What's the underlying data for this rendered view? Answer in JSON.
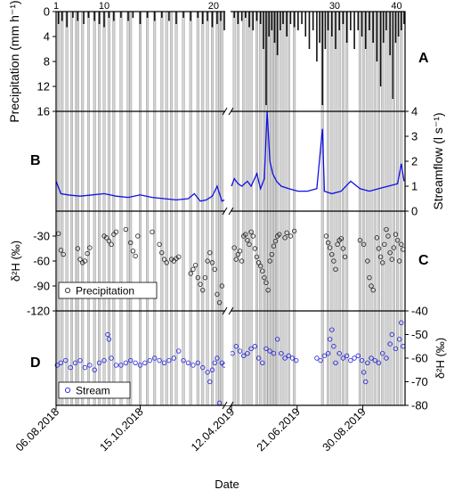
{
  "chart_data": [
    {
      "panel": "A",
      "type": "bar",
      "ylabel": "Precipitation (mm h⁻¹)",
      "ylim": [
        16,
        0
      ],
      "y_axis_inverted": true,
      "yticks": [
        0,
        4,
        8,
        12,
        16
      ],
      "event_numbers": [
        "1",
        "10",
        "20",
        "30",
        "40"
      ],
      "event_numbers_positions_days": [
        0,
        40,
        131,
        359,
        425
      ],
      "values_left": [
        [
          2,
          2
        ],
        [
          5,
          1.5
        ],
        [
          9,
          2.5
        ],
        [
          14,
          1
        ],
        [
          18,
          1.5
        ],
        [
          23,
          2
        ],
        [
          27,
          1
        ],
        [
          32,
          1.5
        ],
        [
          36,
          2
        ],
        [
          40,
          2.5
        ],
        [
          44,
          1
        ],
        [
          48,
          1.5
        ],
        [
          54,
          1
        ],
        [
          60,
          1.5
        ],
        [
          64,
          1
        ],
        [
          70,
          2
        ],
        [
          76,
          1
        ],
        [
          82,
          1.5
        ],
        [
          88,
          1
        ],
        [
          94,
          1.5
        ],
        [
          100,
          2
        ],
        [
          106,
          1
        ],
        [
          112,
          1.5
        ],
        [
          118,
          1
        ],
        [
          122,
          2
        ],
        [
          126,
          1.5
        ],
        [
          130,
          2.5
        ],
        [
          134,
          2
        ],
        [
          137,
          1.5
        ],
        [
          140,
          3
        ]
      ],
      "values_right": [
        [
          252,
          1
        ],
        [
          256,
          2
        ],
        [
          260,
          1.5
        ],
        [
          264,
          1
        ],
        [
          268,
          2.5
        ],
        [
          272,
          3
        ],
        [
          276,
          1.5
        ],
        [
          280,
          2
        ],
        [
          283,
          6
        ],
        [
          286,
          15
        ],
        [
          289,
          4
        ],
        [
          292,
          3
        ],
        [
          295,
          5
        ],
        [
          298,
          7
        ],
        [
          301,
          3
        ],
        [
          304,
          2
        ],
        [
          308,
          4
        ],
        [
          312,
          2
        ],
        [
          316,
          2.5
        ],
        [
          320,
          3
        ],
        [
          324,
          2
        ],
        [
          328,
          4
        ],
        [
          332,
          6
        ],
        [
          336,
          3
        ],
        [
          340,
          8
        ],
        [
          343,
          5
        ],
        [
          346,
          15
        ],
        [
          349,
          6
        ],
        [
          352,
          3
        ],
        [
          356,
          4
        ],
        [
          360,
          6
        ],
        [
          364,
          3
        ],
        [
          368,
          2
        ],
        [
          372,
          5
        ],
        [
          376,
          3
        ],
        [
          380,
          6
        ],
        [
          384,
          3
        ],
        [
          388,
          4
        ],
        [
          392,
          6
        ],
        [
          396,
          3
        ],
        [
          400,
          5
        ],
        [
          404,
          8
        ],
        [
          408,
          12
        ],
        [
          411,
          5
        ],
        [
          414,
          3
        ],
        [
          418,
          7
        ],
        [
          421,
          14
        ],
        [
          424,
          5
        ],
        [
          427,
          4
        ],
        [
          430,
          3
        ],
        [
          433,
          2
        ]
      ]
    },
    {
      "panel": "B",
      "type": "line",
      "ylabel": "Streamflow (l s⁻¹)",
      "ylim": [
        0,
        4
      ],
      "yticks": [
        0,
        1,
        2,
        3,
        4
      ],
      "series_color": "#1010e6",
      "values_left": [
        [
          0,
          1.2
        ],
        [
          4,
          0.7
        ],
        [
          10,
          0.65
        ],
        [
          20,
          0.6
        ],
        [
          30,
          0.65
        ],
        [
          40,
          0.7
        ],
        [
          50,
          0.6
        ],
        [
          60,
          0.55
        ],
        [
          70,
          0.65
        ],
        [
          80,
          0.55
        ],
        [
          90,
          0.5
        ],
        [
          100,
          0.45
        ],
        [
          110,
          0.5
        ],
        [
          115,
          0.7
        ],
        [
          120,
          0.4
        ],
        [
          125,
          0.45
        ],
        [
          130,
          0.6
        ],
        [
          134,
          1.0
        ],
        [
          138,
          0.4
        ],
        [
          140,
          0.45
        ]
      ],
      "values_right": [
        [
          249,
          1.0
        ],
        [
          252,
          1.3
        ],
        [
          256,
          1.1
        ],
        [
          260,
          1.0
        ],
        [
          266,
          1.2
        ],
        [
          270,
          1.0
        ],
        [
          276,
          1.5
        ],
        [
          280,
          0.9
        ],
        [
          284,
          1.3
        ],
        [
          287,
          4.0
        ],
        [
          290,
          2.0
        ],
        [
          293,
          1.5
        ],
        [
          297,
          1.2
        ],
        [
          302,
          1.0
        ],
        [
          310,
          0.9
        ],
        [
          320,
          0.8
        ],
        [
          330,
          0.8
        ],
        [
          340,
          0.9
        ],
        [
          346,
          3.3
        ],
        [
          348,
          0.8
        ],
        [
          356,
          0.7
        ],
        [
          366,
          0.8
        ],
        [
          376,
          1.2
        ],
        [
          386,
          0.9
        ],
        [
          396,
          0.8
        ],
        [
          406,
          0.9
        ],
        [
          416,
          1.0
        ],
        [
          426,
          1.1
        ],
        [
          430,
          1.9
        ],
        [
          433,
          1.2
        ]
      ]
    },
    {
      "panel": "C",
      "type": "scatter",
      "ylabel": "δ²H (‰)",
      "ylim": [
        -120,
        0
      ],
      "yticks": [
        -120,
        -90,
        -60,
        -30
      ],
      "legend": "Precipitation",
      "values_left": [
        [
          2,
          -27
        ],
        [
          4,
          -47
        ],
        [
          6,
          -52
        ],
        [
          18,
          -45
        ],
        [
          20,
          -58
        ],
        [
          22,
          -62
        ],
        [
          24,
          -60
        ],
        [
          26,
          -51
        ],
        [
          28,
          -44
        ],
        [
          40,
          -30
        ],
        [
          42,
          -32
        ],
        [
          44,
          -36
        ],
        [
          46,
          -40
        ],
        [
          48,
          -28
        ],
        [
          50,
          -25
        ],
        [
          58,
          -22
        ],
        [
          62,
          -38
        ],
        [
          64,
          -48
        ],
        [
          66,
          -54
        ],
        [
          68,
          -30
        ],
        [
          80,
          -25
        ],
        [
          86,
          -40
        ],
        [
          88,
          -50
        ],
        [
          90,
          -58
        ],
        [
          92,
          -62
        ],
        [
          96,
          -58
        ],
        [
          98,
          -60
        ],
        [
          100,
          -57
        ],
        [
          102,
          -55
        ],
        [
          112,
          -75
        ],
        [
          114,
          -70
        ],
        [
          116,
          -65
        ],
        [
          118,
          -80
        ],
        [
          120,
          -88
        ],
        [
          122,
          -95
        ],
        [
          124,
          -80
        ],
        [
          126,
          -60
        ],
        [
          128,
          -50
        ],
        [
          130,
          -62
        ],
        [
          132,
          -70
        ],
        [
          134,
          -100
        ],
        [
          136,
          -110
        ],
        [
          138,
          -90
        ]
      ],
      "values_right": [
        [
          252,
          -44
        ],
        [
          254,
          -58
        ],
        [
          256,
          -52
        ],
        [
          258,
          -48
        ],
        [
          260,
          -60
        ],
        [
          262,
          -30
        ],
        [
          264,
          -28
        ],
        [
          266,
          -35
        ],
        [
          268,
          -40
        ],
        [
          270,
          -25
        ],
        [
          272,
          -30
        ],
        [
          274,
          -45
        ],
        [
          276,
          -55
        ],
        [
          278,
          -62
        ],
        [
          280,
          -66
        ],
        [
          282,
          -72
        ],
        [
          284,
          -80
        ],
        [
          286,
          -86
        ],
        [
          288,
          -95
        ],
        [
          290,
          -60
        ],
        [
          292,
          -52
        ],
        [
          294,
          -42
        ],
        [
          296,
          -36
        ],
        [
          298,
          -30
        ],
        [
          300,
          -28
        ],
        [
          306,
          -32
        ],
        [
          308,
          -26
        ],
        [
          312,
          -30
        ],
        [
          316,
          -24
        ],
        [
          350,
          -30
        ],
        [
          352,
          -38
        ],
        [
          354,
          -44
        ],
        [
          356,
          -52
        ],
        [
          358,
          -60
        ],
        [
          360,
          -70
        ],
        [
          362,
          -40
        ],
        [
          364,
          -35
        ],
        [
          366,
          -33
        ],
        [
          368,
          -45
        ],
        [
          370,
          -55
        ],
        [
          386,
          -35
        ],
        [
          390,
          -40
        ],
        [
          394,
          -60
        ],
        [
          396,
          -80
        ],
        [
          398,
          -90
        ],
        [
          400,
          -95
        ],
        [
          404,
          -32
        ],
        [
          406,
          -45
        ],
        [
          408,
          -55
        ],
        [
          410,
          -62
        ],
        [
          412,
          -40
        ],
        [
          414,
          -22
        ],
        [
          416,
          -30
        ],
        [
          418,
          -50
        ],
        [
          420,
          -58
        ],
        [
          422,
          -44
        ],
        [
          424,
          -28
        ],
        [
          426,
          -35
        ],
        [
          428,
          -60
        ],
        [
          430,
          -40
        ],
        [
          432,
          -46
        ]
      ]
    },
    {
      "panel": "D",
      "type": "scatter",
      "ylabel": "δ²H (‰)",
      "ylim": [
        -80,
        -40
      ],
      "yticks": [
        -80,
        -70,
        -60,
        -50,
        -40
      ],
      "legend": "Stream",
      "series_color": "#2020e0",
      "values_left": [
        [
          1,
          -63
        ],
        [
          4,
          -62
        ],
        [
          8,
          -61
        ],
        [
          12,
          -64
        ],
        [
          16,
          -62
        ],
        [
          20,
          -61
        ],
        [
          24,
          -64
        ],
        [
          28,
          -63
        ],
        [
          32,
          -65
        ],
        [
          36,
          -62
        ],
        [
          40,
          -61
        ],
        [
          43,
          -50
        ],
        [
          44,
          -52
        ],
        [
          46,
          -60
        ],
        [
          50,
          -63
        ],
        [
          54,
          -63
        ],
        [
          58,
          -62
        ],
        [
          62,
          -61
        ],
        [
          66,
          -62
        ],
        [
          70,
          -63
        ],
        [
          74,
          -62
        ],
        [
          78,
          -61
        ],
        [
          82,
          -60
        ],
        [
          86,
          -61
        ],
        [
          90,
          -62
        ],
        [
          94,
          -61
        ],
        [
          98,
          -60
        ],
        [
          102,
          -57
        ],
        [
          106,
          -61
        ],
        [
          110,
          -62
        ],
        [
          114,
          -63
        ],
        [
          118,
          -62
        ],
        [
          122,
          -64
        ],
        [
          126,
          -66
        ],
        [
          128,
          -70
        ],
        [
          130,
          -65
        ],
        [
          132,
          -62
        ],
        [
          134,
          -60
        ],
        [
          136,
          -79
        ],
        [
          138,
          -62
        ],
        [
          140,
          -63
        ]
      ],
      "values_right": [
        [
          250,
          -58
        ],
        [
          254,
          -55
        ],
        [
          258,
          -57
        ],
        [
          262,
          -59
        ],
        [
          266,
          -58
        ],
        [
          270,
          -56
        ],
        [
          274,
          -55
        ],
        [
          278,
          -60
        ],
        [
          282,
          -62
        ],
        [
          286,
          -56
        ],
        [
          290,
          -57
        ],
        [
          294,
          -58
        ],
        [
          298,
          -52
        ],
        [
          302,
          -58
        ],
        [
          306,
          -60
        ],
        [
          310,
          -59
        ],
        [
          314,
          -60
        ],
        [
          318,
          -61
        ],
        [
          340,
          -60
        ],
        [
          344,
          -61
        ],
        [
          348,
          -59
        ],
        [
          352,
          -58
        ],
        [
          354,
          -52
        ],
        [
          356,
          -48
        ],
        [
          358,
          -55
        ],
        [
          360,
          -62
        ],
        [
          364,
          -58
        ],
        [
          368,
          -60
        ],
        [
          372,
          -59
        ],
        [
          376,
          -61
        ],
        [
          380,
          -60
        ],
        [
          384,
          -59
        ],
        [
          388,
          -61
        ],
        [
          390,
          -66
        ],
        [
          392,
          -70
        ],
        [
          394,
          -62
        ],
        [
          398,
          -60
        ],
        [
          402,
          -61
        ],
        [
          406,
          -62
        ],
        [
          410,
          -58
        ],
        [
          414,
          -60
        ],
        [
          418,
          -54
        ],
        [
          420,
          -50
        ],
        [
          424,
          -56
        ],
        [
          428,
          -52
        ],
        [
          430,
          -45
        ],
        [
          432,
          -55
        ]
      ]
    }
  ],
  "axis": {
    "xlabel": "Date",
    "date_labels": [
      "06.08.2018",
      "15.10.2018",
      "12.04.2019",
      "21.06.2019",
      "30.08.2019"
    ],
    "date_positions_days": [
      0,
      70,
      249,
      319,
      389
    ]
  },
  "panel_letters": [
    "A",
    "B",
    "C",
    "D"
  ],
  "event_bands_days": [
    2,
    5,
    9,
    13,
    17,
    18,
    22,
    27,
    32,
    36,
    40,
    44,
    48,
    54,
    60,
    62,
    70,
    76,
    82,
    88,
    92,
    96,
    100,
    106,
    112,
    118,
    122,
    126,
    130,
    134,
    136,
    138,
    252,
    256,
    262,
    266,
    270,
    276,
    280,
    284,
    286,
    289,
    292,
    295,
    298,
    302,
    306,
    310,
    316,
    346,
    352,
    356,
    360,
    364,
    368,
    372,
    386,
    390,
    394,
    398,
    402,
    406,
    410,
    414,
    418,
    422,
    426,
    430
  ]
}
